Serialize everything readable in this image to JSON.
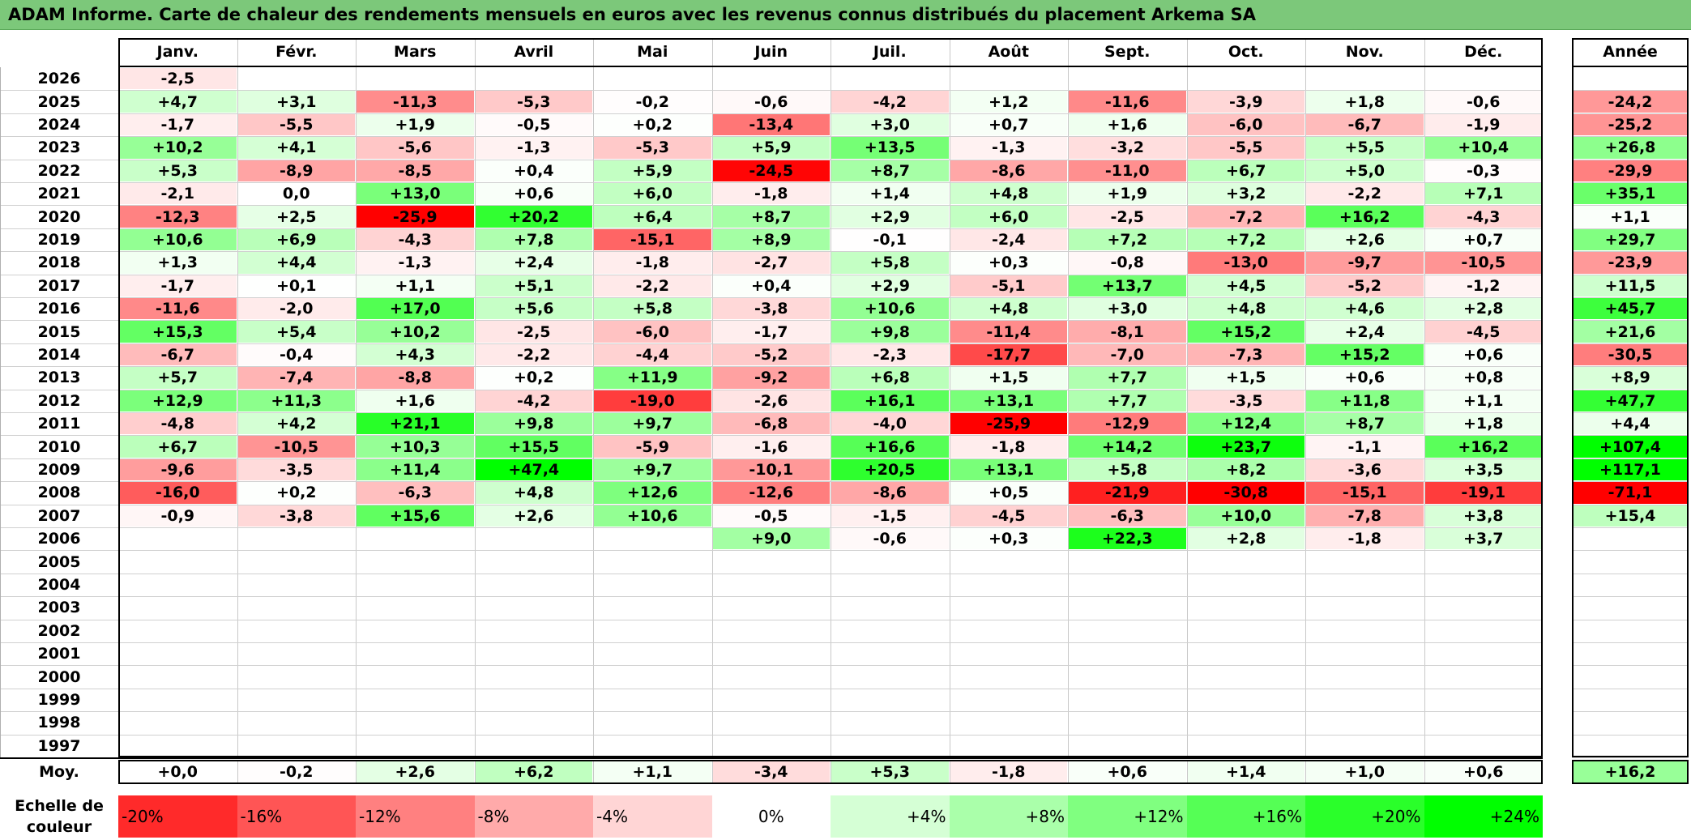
{
  "title": "ADAM Informe. Carte de chaleur des rendements mensuels en euros avec les revenus connus distribués du placement Arkema SA",
  "chart_data": {
    "type": "heatmap",
    "columns": [
      "Janv.",
      "Févr.",
      "Mars",
      "Avril",
      "Mai",
      "Juin",
      "Juil.",
      "Août",
      "Sept.",
      "Oct.",
      "Nov.",
      "Déc."
    ],
    "year_column_label": "Année",
    "rows": [
      {
        "year": "2026",
        "values": [
          "-2,5",
          "",
          "",
          "",
          "",
          "",
          "",
          "",
          "",
          "",
          "",
          ""
        ],
        "annual": ""
      },
      {
        "year": "2025",
        "values": [
          "+4,7",
          "+3,1",
          "-11,3",
          "-5,3",
          "-0,2",
          "-0,6",
          "-4,2",
          "+1,2",
          "-11,6",
          "-3,9",
          "+1,8",
          "-0,6"
        ],
        "annual": "-24,2"
      },
      {
        "year": "2024",
        "values": [
          "-1,7",
          "-5,5",
          "+1,9",
          "-0,5",
          "+0,2",
          "-13,4",
          "+3,0",
          "+0,7",
          "+1,6",
          "-6,0",
          "-6,7",
          "-1,9"
        ],
        "annual": "-25,2"
      },
      {
        "year": "2023",
        "values": [
          "+10,2",
          "+4,1",
          "-5,6",
          "-1,3",
          "-5,3",
          "+5,9",
          "+13,5",
          "-1,3",
          "-3,2",
          "-5,5",
          "+5,5",
          "+10,4"
        ],
        "annual": "+26,8"
      },
      {
        "year": "2022",
        "values": [
          "+5,3",
          "-8,9",
          "-8,5",
          "+0,4",
          "+5,9",
          "-24,5",
          "+8,7",
          "-8,6",
          "-11,0",
          "+6,7",
          "+5,0",
          "-0,3"
        ],
        "annual": "-29,9"
      },
      {
        "year": "2021",
        "values": [
          "-2,1",
          "0,0",
          "+13,0",
          "+0,6",
          "+6,0",
          "-1,8",
          "+1,4",
          "+4,8",
          "+1,9",
          "+3,2",
          "-2,2",
          "+7,1"
        ],
        "annual": "+35,1"
      },
      {
        "year": "2020",
        "values": [
          "-12,3",
          "+2,5",
          "-25,9",
          "+20,2",
          "+6,4",
          "+8,7",
          "+2,9",
          "+6,0",
          "-2,5",
          "-7,2",
          "+16,2",
          "-4,3"
        ],
        "annual": "+1,1"
      },
      {
        "year": "2019",
        "values": [
          "+10,6",
          "+6,9",
          "-4,3",
          "+7,8",
          "-15,1",
          "+8,9",
          "-0,1",
          "-2,4",
          "+7,2",
          "+7,2",
          "+2,6",
          "+0,7"
        ],
        "annual": "+29,7"
      },
      {
        "year": "2018",
        "values": [
          "+1,3",
          "+4,4",
          "-1,3",
          "+2,4",
          "-1,8",
          "-2,7",
          "+5,8",
          "+0,3",
          "-0,8",
          "-13,0",
          "-9,7",
          "-10,5"
        ],
        "annual": "-23,9"
      },
      {
        "year": "2017",
        "values": [
          "-1,7",
          "+0,1",
          "+1,1",
          "+5,1",
          "-2,2",
          "+0,4",
          "+2,9",
          "-5,1",
          "+13,7",
          "+4,5",
          "-5,2",
          "-1,2"
        ],
        "annual": "+11,5"
      },
      {
        "year": "2016",
        "values": [
          "-11,6",
          "-2,0",
          "+17,0",
          "+5,6",
          "+5,8",
          "-3,8",
          "+10,6",
          "+4,8",
          "+3,0",
          "+4,8",
          "+4,6",
          "+2,8"
        ],
        "annual": "+45,7"
      },
      {
        "year": "2015",
        "values": [
          "+15,3",
          "+5,4",
          "+10,2",
          "-2,5",
          "-6,0",
          "-1,7",
          "+9,8",
          "-11,4",
          "-8,1",
          "+15,2",
          "+2,4",
          "-4,5"
        ],
        "annual": "+21,6"
      },
      {
        "year": "2014",
        "values": [
          "-6,7",
          "-0,4",
          "+4,3",
          "-2,2",
          "-4,4",
          "-5,2",
          "-2,3",
          "-17,7",
          "-7,0",
          "-7,3",
          "+15,2",
          "+0,6"
        ],
        "annual": "-30,5"
      },
      {
        "year": "2013",
        "values": [
          "+5,7",
          "-7,4",
          "-8,8",
          "+0,2",
          "+11,9",
          "-9,2",
          "+6,8",
          "+1,5",
          "+7,7",
          "+1,5",
          "+0,6",
          "+0,8"
        ],
        "annual": "+8,9"
      },
      {
        "year": "2012",
        "values": [
          "+12,9",
          "+11,3",
          "+1,6",
          "-4,2",
          "-19,0",
          "-2,6",
          "+16,1",
          "+13,1",
          "+7,7",
          "-3,5",
          "+11,8",
          "+1,1"
        ],
        "annual": "+47,7"
      },
      {
        "year": "2011",
        "values": [
          "-4,8",
          "+4,2",
          "+21,1",
          "+9,8",
          "+9,7",
          "-6,8",
          "-4,0",
          "-25,9",
          "-12,9",
          "+12,4",
          "+8,7",
          "+1,8"
        ],
        "annual": "+4,4"
      },
      {
        "year": "2010",
        "values": [
          "+6,7",
          "-10,5",
          "+10,3",
          "+15,5",
          "-5,9",
          "-1,6",
          "+16,6",
          "-1,8",
          "+14,2",
          "+23,7",
          "-1,1",
          "+16,2"
        ],
        "annual": "+107,4"
      },
      {
        "year": "2009",
        "values": [
          "-9,6",
          "-3,5",
          "+11,4",
          "+47,4",
          "+9,7",
          "-10,1",
          "+20,5",
          "+13,1",
          "+5,8",
          "+8,2",
          "-3,6",
          "+3,5"
        ],
        "annual": "+117,1"
      },
      {
        "year": "2008",
        "values": [
          "-16,0",
          "+0,2",
          "-6,3",
          "+4,8",
          "+12,6",
          "-12,6",
          "-8,6",
          "+0,5",
          "-21,9",
          "-30,8",
          "-15,1",
          "-19,1"
        ],
        "annual": "-71,1"
      },
      {
        "year": "2007",
        "values": [
          "-0,9",
          "-3,8",
          "+15,6",
          "+2,6",
          "+10,6",
          "-0,5",
          "-1,5",
          "-4,5",
          "-6,3",
          "+10,0",
          "-7,8",
          "+3,8"
        ],
        "annual": "+15,4"
      },
      {
        "year": "2006",
        "values": [
          "",
          "",
          "",
          "",
          "",
          "+9,0",
          "-0,6",
          "+0,3",
          "+22,3",
          "+2,8",
          "-1,8",
          "+3,7"
        ],
        "annual": ""
      },
      {
        "year": "2005",
        "values": [
          "",
          "",
          "",
          "",
          "",
          "",
          "",
          "",
          "",
          "",
          "",
          ""
        ],
        "annual": ""
      },
      {
        "year": "2004",
        "values": [
          "",
          "",
          "",
          "",
          "",
          "",
          "",
          "",
          "",
          "",
          "",
          ""
        ],
        "annual": ""
      },
      {
        "year": "2003",
        "values": [
          "",
          "",
          "",
          "",
          "",
          "",
          "",
          "",
          "",
          "",
          "",
          ""
        ],
        "annual": ""
      },
      {
        "year": "2002",
        "values": [
          "",
          "",
          "",
          "",
          "",
          "",
          "",
          "",
          "",
          "",
          "",
          ""
        ],
        "annual": ""
      },
      {
        "year": "2001",
        "values": [
          "",
          "",
          "",
          "",
          "",
          "",
          "",
          "",
          "",
          "",
          "",
          ""
        ],
        "annual": ""
      },
      {
        "year": "2000",
        "values": [
          "",
          "",
          "",
          "",
          "",
          "",
          "",
          "",
          "",
          "",
          "",
          ""
        ],
        "annual": ""
      },
      {
        "year": "1999",
        "values": [
          "",
          "",
          "",
          "",
          "",
          "",
          "",
          "",
          "",
          "",
          "",
          ""
        ],
        "annual": ""
      },
      {
        "year": "1998",
        "values": [
          "",
          "",
          "",
          "",
          "",
          "",
          "",
          "",
          "",
          "",
          "",
          ""
        ],
        "annual": ""
      },
      {
        "year": "1997",
        "values": [
          "",
          "",
          "",
          "",
          "",
          "",
          "",
          "",
          "",
          "",
          "",
          ""
        ],
        "annual": ""
      }
    ],
    "average": {
      "label": "Moy.",
      "values": [
        "+0,0",
        "-0,2",
        "+2,6",
        "+6,2",
        "+1,1",
        "-3,4",
        "+5,3",
        "-1,8",
        "+0,6",
        "+1,4",
        "+1,0",
        "+0,6"
      ],
      "annual": "+16,2"
    },
    "scale": {
      "label_line1": "Echelle de",
      "label_line2": "couleur",
      "steps": [
        "-20%",
        "-16%",
        "-12%",
        "-8%",
        "-4%",
        "0%",
        "+4%",
        "+8%",
        "+12%",
        "+16%",
        "+20%",
        "+24%"
      ],
      "step_values": [
        -20,
        -16,
        -12,
        -8,
        -4,
        0,
        4,
        8,
        12,
        16,
        20,
        24
      ]
    },
    "colors": {
      "negative_max": "#ff0000",
      "neutral": "#ffffff",
      "positive_max": "#00ff00",
      "title_bar": "#7cc87a"
    }
  }
}
